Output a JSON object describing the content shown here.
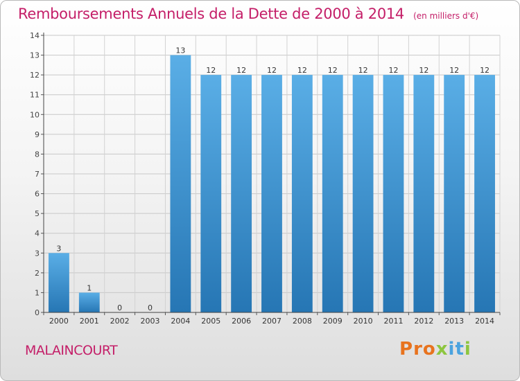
{
  "chart_data": {
    "type": "bar",
    "title": "Remboursements Annuels de la Dette de 2000 à 2014",
    "subtitle": "(en milliers d'€)",
    "categories": [
      "2000",
      "2001",
      "2002",
      "2003",
      "2004",
      "2005",
      "2006",
      "2007",
      "2008",
      "2009",
      "2010",
      "2011",
      "2012",
      "2013",
      "2014"
    ],
    "values": [
      3,
      1,
      0,
      0,
      13,
      12,
      12,
      12,
      12,
      12,
      12,
      12,
      12,
      12,
      12
    ],
    "ylim": [
      0,
      14
    ],
    "yticks": [
      0,
      1,
      2,
      3,
      4,
      5,
      6,
      7,
      8,
      9,
      10,
      11,
      12,
      13,
      14
    ],
    "grid": true,
    "legend": "none",
    "bar_color_top": "#5aaee6",
    "bar_color_bottom": "#2676b4"
  },
  "footer": {
    "location": "MALAINCOURT",
    "logo": "Proxiti"
  },
  "colors": {
    "title": "#c41e68",
    "logo_letters": [
      "#e8731e",
      "#e8731e",
      "#e8731e",
      "#8dc63f",
      "#4aa3df",
      "#4aa3df",
      "#8dc63f"
    ]
  }
}
